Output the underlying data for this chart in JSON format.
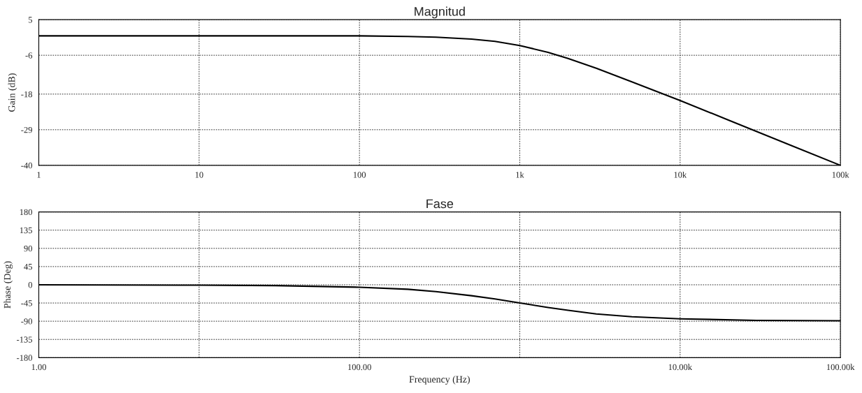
{
  "chart_data": [
    {
      "type": "line",
      "title": "Magnitud",
      "ylabel": "Gain (dB)",
      "log": "x",
      "xlim": [
        1,
        100000
      ],
      "xticks": [
        1,
        10,
        100,
        {
          "value": 1000,
          "label": "1k"
        },
        {
          "value": 10000,
          "label": "10k"
        },
        {
          "value": 100000,
          "label": "100k"
        }
      ],
      "ylim": [
        -40,
        5
      ],
      "yticks": [
        -40,
        -29,
        -18,
        -6,
        5
      ],
      "grid": true,
      "line_style": "solid",
      "marker": "none",
      "series": [
        {
          "color": "#000000",
          "x": [
            1,
            10,
            100,
            200,
            300,
            500,
            700,
            1000,
            1500,
            2000,
            3000,
            5000,
            7000,
            10000,
            20000,
            50000,
            100000
          ],
          "values": [
            0,
            0,
            0,
            -0.2,
            -0.4,
            -1,
            -1.7,
            -3,
            -5.1,
            -7,
            -10,
            -14.2,
            -17,
            -20,
            -26,
            -34,
            -40
          ]
        }
      ]
    },
    {
      "type": "line",
      "title": "Fase",
      "xlabel": "Frequency (Hz)",
      "ylabel": "Phase (Deg)",
      "log": "x",
      "xlim": [
        1,
        100000
      ],
      "xticks": [
        {
          "value": 1,
          "label": "1.00"
        },
        {
          "value": 10,
          "label": null
        },
        {
          "value": 100,
          "label": "100.00"
        },
        {
          "value": 1000,
          "label": null
        },
        {
          "value": 10000,
          "label": "10.00k"
        },
        {
          "value": 100000,
          "label": "100.00k"
        }
      ],
      "ylim": [
        -180,
        180
      ],
      "yticks": [
        -180,
        -135,
        -90,
        -45,
        0,
        45,
        90,
        135,
        180
      ],
      "grid": true,
      "line_style": "solid",
      "marker": "none",
      "series": [
        {
          "color": "#000000",
          "x": [
            1,
            10,
            30,
            100,
            200,
            300,
            500,
            700,
            1000,
            1500,
            2000,
            3000,
            5000,
            10000,
            30000,
            100000
          ],
          "values": [
            0,
            -1,
            -2,
            -6,
            -11,
            -17,
            -27,
            -35,
            -45,
            -56,
            -63,
            -72,
            -79,
            -84,
            -88,
            -89
          ]
        }
      ]
    }
  ]
}
